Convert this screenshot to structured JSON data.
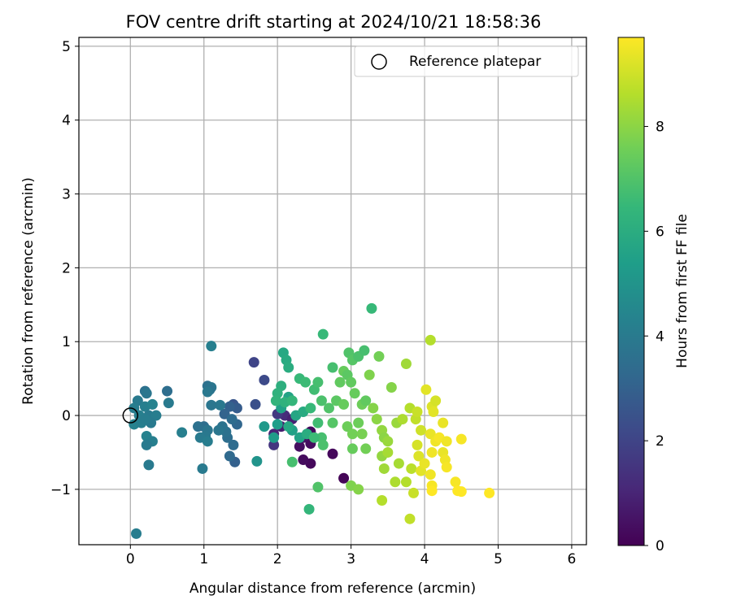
{
  "chart_data": {
    "type": "scatter",
    "title": "FOV centre drift starting at 2024/10/21 18:58:36",
    "xlabel": "Angular distance from reference (arcmin)",
    "ylabel": "Rotation from reference (arcmin)",
    "xlim": [
      -0.7,
      6.2
    ],
    "ylim": [
      -1.75,
      5.12
    ],
    "xticks": [
      0,
      1,
      2,
      3,
      4,
      5,
      6
    ],
    "yticks": [
      -1,
      0,
      1,
      2,
      3,
      4,
      5
    ],
    "xtick_labels": [
      "0",
      "1",
      "2",
      "3",
      "4",
      "5",
      "6"
    ],
    "ytick_labels": [
      "−1",
      "0",
      "1",
      "2",
      "3",
      "4",
      "5"
    ],
    "grid": true,
    "legend_position": "top-right",
    "legend": {
      "entries": [
        {
          "name": "Reference platepar",
          "marker": "hollow-circle"
        }
      ]
    },
    "reference_point": {
      "x": 0,
      "y": 0
    },
    "colorbar": {
      "label": "Hours from first FF file",
      "range": [
        0,
        9.7
      ],
      "ticks": [
        0,
        2,
        4,
        6,
        8
      ],
      "tick_labels": [
        "0",
        "2",
        "4",
        "6",
        "8"
      ],
      "colormap": "viridis",
      "colormap_stops": [
        "#440154",
        "#482878",
        "#3e4989",
        "#31688e",
        "#26828e",
        "#1f9e89",
        "#35b779",
        "#6ece58",
        "#b5de2b",
        "#fde725"
      ]
    },
    "points": [
      {
        "x": 2.9,
        "y": -0.85,
        "t": 0.1
      },
      {
        "x": 2.45,
        "y": -0.65,
        "t": 0.2
      },
      {
        "x": 2.35,
        "y": -0.6,
        "t": 0.3
      },
      {
        "x": 2.75,
        "y": -0.52,
        "t": 0.2
      },
      {
        "x": 2.3,
        "y": -0.42,
        "t": 0.4
      },
      {
        "x": 2.45,
        "y": -0.38,
        "t": 0.3
      },
      {
        "x": 2.35,
        "y": -0.3,
        "t": 0.5
      },
      {
        "x": 2.2,
        "y": -0.2,
        "t": 0.6
      },
      {
        "x": 2.45,
        "y": -0.22,
        "t": 0.2
      },
      {
        "x": 2.05,
        "y": -0.15,
        "t": 0.8
      },
      {
        "x": 1.95,
        "y": -0.25,
        "t": 1.0
      },
      {
        "x": 2.1,
        "y": 0.0,
        "t": 1.2
      },
      {
        "x": 2.2,
        "y": -0.05,
        "t": 0.9
      },
      {
        "x": 1.95,
        "y": -0.4,
        "t": 1.5
      },
      {
        "x": 2.0,
        "y": 0.02,
        "t": 1.6
      },
      {
        "x": 1.68,
        "y": 0.72,
        "t": 2.0
      },
      {
        "x": 1.82,
        "y": 0.48,
        "t": 2.2
      },
      {
        "x": 1.7,
        "y": 0.15,
        "t": 2.4
      },
      {
        "x": 1.4,
        "y": 0.15,
        "t": 2.6
      },
      {
        "x": 1.45,
        "y": 0.1,
        "t": 2.8
      },
      {
        "x": 1.35,
        "y": 0.12,
        "t": 3.0
      },
      {
        "x": 1.28,
        "y": 0.02,
        "t": 3.1
      },
      {
        "x": 1.45,
        "y": -0.12,
        "t": 3.2
      },
      {
        "x": 1.42,
        "y": -0.63,
        "t": 3.0
      },
      {
        "x": 1.35,
        "y": -0.55,
        "t": 3.3
      },
      {
        "x": 1.4,
        "y": -0.4,
        "t": 3.4
      },
      {
        "x": 1.32,
        "y": -0.3,
        "t": 3.5
      },
      {
        "x": 1.3,
        "y": -0.22,
        "t": 3.6
      },
      {
        "x": 1.25,
        "y": -0.15,
        "t": 3.7
      },
      {
        "x": 1.2,
        "y": -0.2,
        "t": 3.8
      },
      {
        "x": 1.38,
        "y": -0.05,
        "t": 3.4
      },
      {
        "x": 1.22,
        "y": 0.14,
        "t": 3.9
      },
      {
        "x": 1.05,
        "y": 0.4,
        "t": 3.6
      },
      {
        "x": 1.1,
        "y": 0.38,
        "t": 3.8
      },
      {
        "x": 1.08,
        "y": 0.35,
        "t": 3.7
      },
      {
        "x": 1.05,
        "y": 0.32,
        "t": 3.9
      },
      {
        "x": 1.1,
        "y": 0.14,
        "t": 3.8
      },
      {
        "x": 1.0,
        "y": -0.15,
        "t": 3.5
      },
      {
        "x": 0.92,
        "y": -0.15,
        "t": 3.6
      },
      {
        "x": 1.05,
        "y": -0.2,
        "t": 3.8
      },
      {
        "x": 1.02,
        "y": -0.28,
        "t": 3.9
      },
      {
        "x": 0.95,
        "y": -0.3,
        "t": 4.0
      },
      {
        "x": 1.05,
        "y": -0.35,
        "t": 4.1
      },
      {
        "x": 0.98,
        "y": -0.72,
        "t": 4.0
      },
      {
        "x": 1.1,
        "y": 0.94,
        "t": 4.2
      },
      {
        "x": 0.7,
        "y": -0.23,
        "t": 4.2
      },
      {
        "x": 0.52,
        "y": 0.17,
        "t": 4.0
      },
      {
        "x": 0.5,
        "y": 0.33,
        "t": 3.5
      },
      {
        "x": 0.2,
        "y": 0.33,
        "t": 3.6
      },
      {
        "x": 0.22,
        "y": 0.3,
        "t": 3.8
      },
      {
        "x": 0.1,
        "y": 0.2,
        "t": 4.0
      },
      {
        "x": 0.05,
        "y": 0.1,
        "t": 4.1
      },
      {
        "x": 0.2,
        "y": 0.12,
        "t": 4.2
      },
      {
        "x": 0.3,
        "y": 0.15,
        "t": 4.3
      },
      {
        "x": 0.12,
        "y": 0.0,
        "t": 4.2
      },
      {
        "x": 0.25,
        "y": 0.0,
        "t": 4.0
      },
      {
        "x": 0.35,
        "y": 0.0,
        "t": 4.1
      },
      {
        "x": 0.05,
        "y": -0.12,
        "t": 4.3
      },
      {
        "x": 0.15,
        "y": -0.1,
        "t": 4.2
      },
      {
        "x": 0.28,
        "y": -0.1,
        "t": 4.0
      },
      {
        "x": 0.2,
        "y": -0.05,
        "t": 4.1
      },
      {
        "x": 0.22,
        "y": -0.28,
        "t": 4.3
      },
      {
        "x": 0.3,
        "y": -0.35,
        "t": 4.2
      },
      {
        "x": 0.22,
        "y": -0.4,
        "t": 4.0
      },
      {
        "x": 0.25,
        "y": -0.67,
        "t": 4.0
      },
      {
        "x": 0.08,
        "y": -1.6,
        "t": 4.1
      },
      {
        "x": 1.72,
        "y": -0.62,
        "t": 5.0
      },
      {
        "x": 1.82,
        "y": -0.15,
        "t": 5.2
      },
      {
        "x": 1.95,
        "y": -0.3,
        "t": 5.3
      },
      {
        "x": 2.0,
        "y": -0.12,
        "t": 5.4
      },
      {
        "x": 2.05,
        "y": 0.1,
        "t": 5.5
      },
      {
        "x": 2.15,
        "y": 0.25,
        "t": 5.6
      },
      {
        "x": 2.2,
        "y": -0.2,
        "t": 5.5
      },
      {
        "x": 2.25,
        "y": 0.0,
        "t": 5.7
      },
      {
        "x": 2.3,
        "y": -0.3,
        "t": 5.6
      },
      {
        "x": 2.15,
        "y": -0.15,
        "t": 5.8
      },
      {
        "x": 2.35,
        "y": 0.05,
        "t": 5.9
      },
      {
        "x": 2.4,
        "y": -0.25,
        "t": 6.0
      },
      {
        "x": 2.08,
        "y": 0.85,
        "t": 5.8
      },
      {
        "x": 2.12,
        "y": 0.75,
        "t": 5.9
      },
      {
        "x": 2.15,
        "y": 0.65,
        "t": 6.0
      },
      {
        "x": 2.05,
        "y": 0.4,
        "t": 6.1
      },
      {
        "x": 2.0,
        "y": 0.3,
        "t": 6.2
      },
      {
        "x": 1.98,
        "y": 0.2,
        "t": 6.3
      },
      {
        "x": 2.1,
        "y": 0.18,
        "t": 6.2
      },
      {
        "x": 2.2,
        "y": 0.2,
        "t": 6.4
      },
      {
        "x": 2.3,
        "y": 0.5,
        "t": 6.5
      },
      {
        "x": 2.38,
        "y": 0.45,
        "t": 6.6
      },
      {
        "x": 2.45,
        "y": 0.1,
        "t": 6.5
      },
      {
        "x": 2.5,
        "y": 0.35,
        "t": 6.7
      },
      {
        "x": 2.55,
        "y": 0.45,
        "t": 6.8
      },
      {
        "x": 2.6,
        "y": 0.2,
        "t": 6.9
      },
      {
        "x": 2.55,
        "y": -0.1,
        "t": 6.7
      },
      {
        "x": 2.6,
        "y": -0.3,
        "t": 6.8
      },
      {
        "x": 2.62,
        "y": -0.4,
        "t": 6.9
      },
      {
        "x": 2.5,
        "y": -0.3,
        "t": 6.6
      },
      {
        "x": 2.2,
        "y": -0.63,
        "t": 6.8
      },
      {
        "x": 2.55,
        "y": -0.97,
        "t": 7.0
      },
      {
        "x": 2.43,
        "y": -1.27,
        "t": 6.4
      },
      {
        "x": 2.62,
        "y": 1.1,
        "t": 6.5
      },
      {
        "x": 2.75,
        "y": 0.65,
        "t": 6.8
      },
      {
        "x": 2.7,
        "y": 0.1,
        "t": 7.0
      },
      {
        "x": 2.75,
        "y": -0.1,
        "t": 7.1
      },
      {
        "x": 2.8,
        "y": 0.2,
        "t": 7.2
      },
      {
        "x": 2.85,
        "y": 0.45,
        "t": 7.3
      },
      {
        "x": 2.9,
        "y": 0.6,
        "t": 7.4
      },
      {
        "x": 2.95,
        "y": 0.55,
        "t": 7.2
      },
      {
        "x": 2.97,
        "y": 0.85,
        "t": 7.0
      },
      {
        "x": 3.02,
        "y": 0.75,
        "t": 7.1
      },
      {
        "x": 3.1,
        "y": 0.8,
        "t": 6.9
      },
      {
        "x": 3.18,
        "y": 0.88,
        "t": 6.8
      },
      {
        "x": 3.0,
        "y": 0.45,
        "t": 7.3
      },
      {
        "x": 3.05,
        "y": 0.3,
        "t": 7.4
      },
      {
        "x": 3.15,
        "y": 0.15,
        "t": 7.5
      },
      {
        "x": 3.2,
        "y": 0.2,
        "t": 7.3
      },
      {
        "x": 2.9,
        "y": 0.15,
        "t": 7.4
      },
      {
        "x": 2.95,
        "y": -0.15,
        "t": 7.5
      },
      {
        "x": 3.02,
        "y": -0.25,
        "t": 7.6
      },
      {
        "x": 3.1,
        "y": -0.1,
        "t": 7.5
      },
      {
        "x": 3.15,
        "y": -0.25,
        "t": 7.7
      },
      {
        "x": 3.2,
        "y": -0.45,
        "t": 7.6
      },
      {
        "x": 3.02,
        "y": -0.45,
        "t": 7.4
      },
      {
        "x": 3.0,
        "y": -0.95,
        "t": 7.8
      },
      {
        "x": 3.1,
        "y": -1.0,
        "t": 7.9
      },
      {
        "x": 3.28,
        "y": 1.45,
        "t": 6.5
      },
      {
        "x": 3.25,
        "y": 0.55,
        "t": 7.8
      },
      {
        "x": 3.38,
        "y": 0.8,
        "t": 7.6
      },
      {
        "x": 3.3,
        "y": 0.1,
        "t": 7.9
      },
      {
        "x": 3.35,
        "y": -0.05,
        "t": 8.0
      },
      {
        "x": 3.42,
        "y": -0.2,
        "t": 8.1
      },
      {
        "x": 3.45,
        "y": -0.3,
        "t": 8.0
      },
      {
        "x": 3.5,
        "y": -0.35,
        "t": 8.2
      },
      {
        "x": 3.42,
        "y": -0.55,
        "t": 8.1
      },
      {
        "x": 3.45,
        "y": -0.72,
        "t": 8.3
      },
      {
        "x": 3.5,
        "y": -0.5,
        "t": 8.4
      },
      {
        "x": 3.55,
        "y": 0.38,
        "t": 7.9
      },
      {
        "x": 3.62,
        "y": -0.1,
        "t": 8.2
      },
      {
        "x": 3.65,
        "y": -0.65,
        "t": 8.4
      },
      {
        "x": 3.6,
        "y": -0.9,
        "t": 8.5
      },
      {
        "x": 3.42,
        "y": -1.15,
        "t": 8.6
      },
      {
        "x": 3.75,
        "y": 0.7,
        "t": 8.3
      },
      {
        "x": 3.7,
        "y": -0.05,
        "t": 8.5
      },
      {
        "x": 3.8,
        "y": 0.1,
        "t": 8.6
      },
      {
        "x": 3.75,
        "y": -0.9,
        "t": 8.6
      },
      {
        "x": 3.82,
        "y": -0.72,
        "t": 8.7
      },
      {
        "x": 3.8,
        "y": -1.4,
        "t": 8.8
      },
      {
        "x": 3.85,
        "y": -1.05,
        "t": 8.9
      },
      {
        "x": 3.88,
        "y": -0.05,
        "t": 8.8
      },
      {
        "x": 3.9,
        "y": 0.05,
        "t": 8.9
      },
      {
        "x": 3.95,
        "y": -0.2,
        "t": 9.0
      },
      {
        "x": 3.9,
        "y": -0.4,
        "t": 9.1
      },
      {
        "x": 3.92,
        "y": -0.55,
        "t": 9.2
      },
      {
        "x": 3.95,
        "y": -0.75,
        "t": 9.3
      },
      {
        "x": 4.0,
        "y": -0.65,
        "t": 9.4
      },
      {
        "x": 4.02,
        "y": 0.35,
        "t": 9.3
      },
      {
        "x": 4.08,
        "y": 1.02,
        "t": 8.6
      },
      {
        "x": 4.1,
        "y": 0.12,
        "t": 9.2
      },
      {
        "x": 4.12,
        "y": 0.05,
        "t": 9.3
      },
      {
        "x": 4.15,
        "y": 0.2,
        "t": 9.1
      },
      {
        "x": 4.08,
        "y": -0.25,
        "t": 9.4
      },
      {
        "x": 4.15,
        "y": -0.35,
        "t": 9.5
      },
      {
        "x": 4.1,
        "y": -0.5,
        "t": 9.5
      },
      {
        "x": 4.2,
        "y": -0.3,
        "t": 9.6
      },
      {
        "x": 4.25,
        "y": -0.5,
        "t": 9.4
      },
      {
        "x": 4.28,
        "y": -0.6,
        "t": 9.5
      },
      {
        "x": 4.3,
        "y": -0.7,
        "t": 9.6
      },
      {
        "x": 4.25,
        "y": -0.1,
        "t": 9.4
      },
      {
        "x": 4.08,
        "y": -0.8,
        "t": 9.5
      },
      {
        "x": 4.1,
        "y": -0.95,
        "t": 9.6
      },
      {
        "x": 4.1,
        "y": -1.02,
        "t": 9.7
      },
      {
        "x": 4.3,
        "y": -0.35,
        "t": 9.5
      },
      {
        "x": 4.42,
        "y": -0.9,
        "t": 9.6
      },
      {
        "x": 4.45,
        "y": -1.02,
        "t": 9.7
      },
      {
        "x": 4.5,
        "y": -1.03,
        "t": 9.7
      },
      {
        "x": 4.5,
        "y": -0.32,
        "t": 9.6
      },
      {
        "x": 4.88,
        "y": -1.05,
        "t": 9.7
      }
    ]
  }
}
